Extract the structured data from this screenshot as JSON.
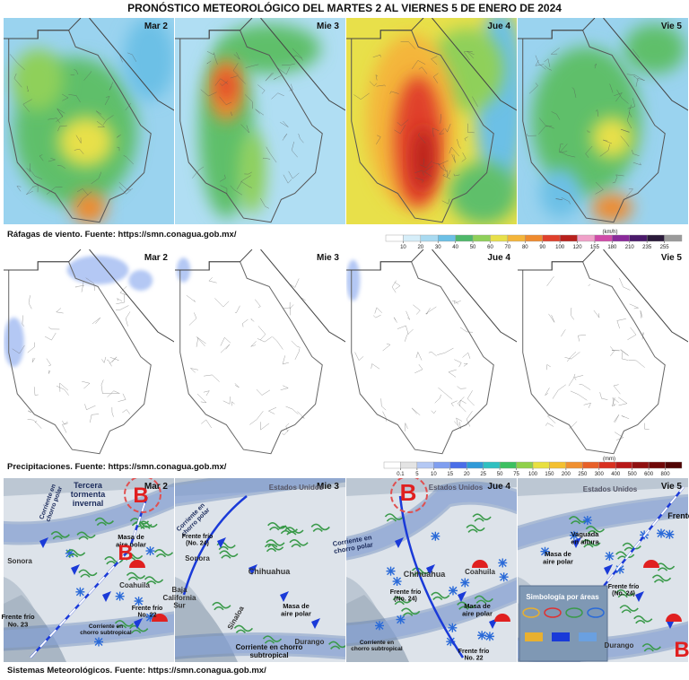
{
  "title": "PRONÓSTICO METEOROLÓGICO DEL MARTES 2 AL VIERNES 5 DE ENERO DE 2024",
  "wind": {
    "caption": "Ráfagas de viento.  Fuente: https://smn.conagua.gob.mx/",
    "panels": [
      "Mar 2",
      "Mie 3",
      "Jue 4",
      "Vie 5"
    ],
    "unit": "(km/h)",
    "ticks": [
      10,
      20,
      30,
      40,
      50,
      60,
      70,
      80,
      90,
      100,
      120,
      155,
      180,
      210,
      235,
      255
    ],
    "colors": [
      "#ffffff",
      "#d6eef9",
      "#a9daf1",
      "#6cc0e6",
      "#4fb86a",
      "#8fd05a",
      "#e8e04a",
      "#f4b53a",
      "#ef8a2e",
      "#e0402c",
      "#b8201c",
      "#f0a0c8",
      "#d04aa8",
      "#8a2a9a",
      "#4a1a6a",
      "#2a1a3a",
      "#9a9a9a"
    ]
  },
  "precip": {
    "caption": "Precipitaciones.  Fuente: https://smn.conagua.gob.mx/",
    "panels": [
      "Mar 2",
      "Mie 3",
      "Jue 4",
      "Vie 5"
    ],
    "unit": "(mm)",
    "ticks": [
      0.1,
      5,
      10,
      15,
      20,
      25,
      50,
      75,
      100,
      150,
      200,
      250,
      300,
      400,
      500,
      600,
      800
    ],
    "colors": [
      "#ffffff",
      "#e4e4e4",
      "#b4c8f4",
      "#7f9ef0",
      "#4a6ee8",
      "#2f9ad8",
      "#2fc0c0",
      "#3cc060",
      "#8fd04a",
      "#e8e040",
      "#f4c030",
      "#f09030",
      "#e86028",
      "#d83020",
      "#b81818",
      "#901010",
      "#700808",
      "#500404"
    ]
  },
  "systems": {
    "caption": "Sistemas Meteorológicos.    Fuente: https://smn.conagua.gob.mx/",
    "panels": [
      "Mar 2",
      "Mie 3",
      "Jue 4",
      "Vie 5"
    ],
    "annotations": [
      {
        "lines": [
          "Tercera",
          "tormenta",
          "invernal"
        ]
      },
      {
        "lines": [
          "Corriente en",
          "chorro polar"
        ]
      },
      {
        "lines": [
          "B"
        ]
      },
      {
        "lines": [
          "Masa de",
          "aire polar"
        ]
      },
      {
        "lines": [
          "B"
        ]
      },
      {
        "lines": [
          "Sonora"
        ]
      },
      {
        "lines": [
          "Coahuila"
        ]
      },
      {
        "lines": [
          "Frente frío",
          "No. 22"
        ]
      },
      {
        "lines": [
          "Frente frío",
          "No. 23"
        ]
      },
      {
        "lines": [
          "Corriente en",
          "chorro subtropical"
        ]
      },
      {
        "lines": [
          "Estados Unidos"
        ]
      },
      {
        "lines": [
          "Corriente en",
          "chorro polar"
        ]
      },
      {
        "lines": [
          "Frente frío",
          "(No. 24)"
        ]
      },
      {
        "lines": [
          "Sonora"
        ]
      },
      {
        "lines": [
          "Chihuahua"
        ]
      },
      {
        "lines": [
          "Baja",
          "California",
          "Sur"
        ]
      },
      {
        "lines": [
          "Masa de",
          "aire polar"
        ]
      },
      {
        "lines": [
          "Sinaloa"
        ]
      },
      {
        "lines": [
          "Corriente en chorro",
          "subtropical"
        ]
      },
      {
        "lines": [
          "Durango"
        ]
      },
      {
        "lines": [
          "B"
        ]
      },
      {
        "lines": [
          "Estados Unidos"
        ]
      },
      {
        "lines": [
          "Corriente en",
          "chorro polar"
        ]
      },
      {
        "lines": [
          "Chihuahua"
        ]
      },
      {
        "lines": [
          "Coahuila"
        ]
      },
      {
        "lines": [
          "Frente frío",
          "(No. 24)"
        ]
      },
      {
        "lines": [
          "Masa de",
          "aire polar"
        ]
      },
      {
        "lines": [
          "Corriente en",
          "chorro subtropical"
        ]
      },
      {
        "lines": [
          "Frente frío",
          "No. 22"
        ]
      },
      {
        "lines": [
          "Estados Unidos"
        ]
      },
      {
        "lines": [
          "Vaguada",
          "en altura"
        ]
      },
      {
        "lines": [
          "Masa de",
          "aire polar"
        ]
      },
      {
        "lines": [
          "Frente frío",
          "(No. 24)"
        ]
      },
      {
        "lines": [
          "Frente"
        ]
      },
      {
        "lines": [
          "Simbología por áreas"
        ]
      },
      {
        "lines": [
          "Durango"
        ]
      },
      {
        "lines": [
          "B"
        ]
      }
    ]
  }
}
